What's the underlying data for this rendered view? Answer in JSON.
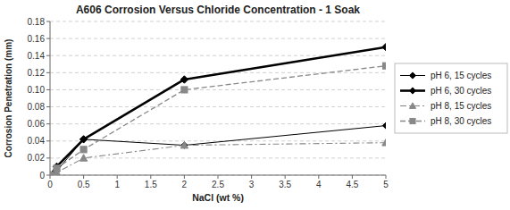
{
  "chart_data": {
    "type": "line",
    "title": "A606 Corrosion Versus Chloride Concentration - 1 Soak",
    "x_label": "NaCl (wt %)",
    "y_label": "Corrosion Penetration (mm)",
    "x": [
      0,
      0.1,
      0.5,
      2,
      5
    ],
    "series": [
      {
        "name": "pH 6, 15 cycles",
        "color": "#000000",
        "marker": "diamond",
        "line_style": "solid",
        "values": [
          0,
          0.005,
          0.042,
          0.035,
          0.058
        ]
      },
      {
        "name": "pH 6, 30 cycles",
        "color": "#000000",
        "marker": "diamond",
        "line_style": "solid",
        "values": [
          0,
          0.01,
          0.042,
          0.112,
          0.15
        ]
      },
      {
        "name": "pH 8, 15 cycles",
        "color": "#888888",
        "marker": "triangle",
        "line_style": "dashdot",
        "values": [
          0,
          0.003,
          0.02,
          0.035,
          0.038
        ]
      },
      {
        "name": "pH 8, 30 cycles",
        "color": "#888888",
        "marker": "square",
        "line_style": "dashed",
        "values": [
          0,
          0.008,
          0.03,
          0.1,
          0.128
        ]
      }
    ],
    "xlim": [
      0,
      5
    ],
    "ylim": [
      0,
      0.18
    ],
    "xticks": [
      0,
      0.5,
      1,
      1.5,
      2,
      2.5,
      3,
      3.5,
      4,
      4.5,
      5
    ],
    "yticks": [
      0,
      0.02,
      0.04,
      0.06,
      0.08,
      {
        "value": 0.1,
        "label": "0.10"
      },
      0.12,
      0.14,
      0.16,
      0.18
    ],
    "grid": true,
    "legend": "right"
  }
}
